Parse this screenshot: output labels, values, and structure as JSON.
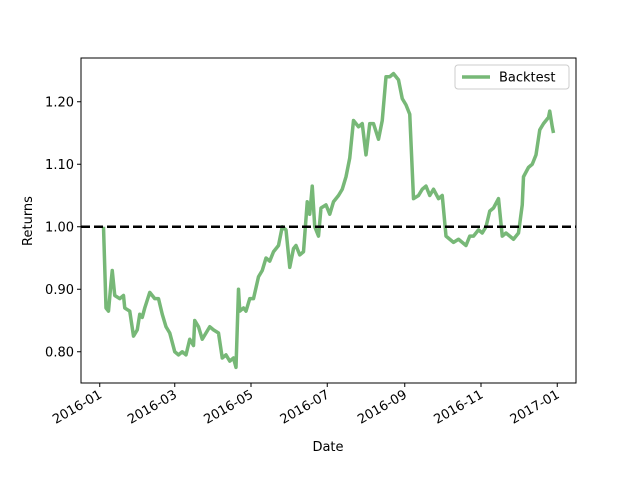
{
  "chart_data": {
    "type": "line",
    "xlabel": "Date",
    "ylabel": "Returns",
    "x": [
      "2016-01-04",
      "2016-01-06",
      "2016-01-08",
      "2016-01-10",
      "2016-01-11",
      "2016-01-13",
      "2016-01-17",
      "2016-01-20",
      "2016-01-21",
      "2016-01-25",
      "2016-01-28",
      "2016-01-31",
      "2016-02-02",
      "2016-02-04",
      "2016-02-06",
      "2016-02-10",
      "2016-02-14",
      "2016-02-17",
      "2016-02-20",
      "2016-02-23",
      "2016-02-26",
      "2016-03-01",
      "2016-03-04",
      "2016-03-07",
      "2016-03-10",
      "2016-03-13",
      "2016-03-16",
      "2016-03-17",
      "2016-03-20",
      "2016-03-23",
      "2016-03-26",
      "2016-03-29",
      "2016-04-01",
      "2016-04-05",
      "2016-04-08",
      "2016-04-11",
      "2016-04-14",
      "2016-04-17",
      "2016-04-19",
      "2016-04-21",
      "2016-04-22",
      "2016-04-25",
      "2016-04-27",
      "2016-04-30",
      "2016-05-03",
      "2016-05-07",
      "2016-05-10",
      "2016-05-13",
      "2016-05-16",
      "2016-05-19",
      "2016-05-23",
      "2016-05-26",
      "2016-05-29",
      "2016-06-01",
      "2016-06-04",
      "2016-06-06",
      "2016-06-09",
      "2016-06-12",
      "2016-06-15",
      "2016-06-17",
      "2016-06-19",
      "2016-06-21",
      "2016-06-24",
      "2016-06-26",
      "2016-06-30",
      "2016-07-03",
      "2016-07-06",
      "2016-07-10",
      "2016-07-13",
      "2016-07-16",
      "2016-07-19",
      "2016-07-22",
      "2016-07-26",
      "2016-07-29",
      "2016-08-01",
      "2016-08-04",
      "2016-08-07",
      "2016-08-11",
      "2016-08-14",
      "2016-08-17",
      "2016-08-20",
      "2016-08-23",
      "2016-08-27",
      "2016-08-30",
      "2016-09-02",
      "2016-09-05",
      "2016-09-08",
      "2016-09-12",
      "2016-09-15",
      "2016-09-18",
      "2016-09-21",
      "2016-09-24",
      "2016-09-28",
      "2016-10-01",
      "2016-10-04",
      "2016-10-07",
      "2016-10-10",
      "2016-10-14",
      "2016-10-17",
      "2016-10-20",
      "2016-10-23",
      "2016-10-26",
      "2016-10-30",
      "2016-11-02",
      "2016-11-05",
      "2016-11-08",
      "2016-11-11",
      "2016-11-15",
      "2016-11-18",
      "2016-11-21",
      "2016-11-24",
      "2016-11-27",
      "2016-12-01",
      "2016-12-04",
      "2016-12-05",
      "2016-12-09",
      "2016-12-12",
      "2016-12-15",
      "2016-12-18",
      "2016-12-21",
      "2016-12-25",
      "2016-12-26",
      "2016-12-28",
      "2016-12-29"
    ],
    "series": [
      {
        "name": "Backtest",
        "color": "#77b877",
        "values": [
          1.0,
          0.87,
          0.865,
          0.91,
          0.93,
          0.89,
          0.885,
          0.89,
          0.87,
          0.865,
          0.825,
          0.835,
          0.86,
          0.855,
          0.87,
          0.895,
          0.885,
          0.885,
          0.86,
          0.84,
          0.83,
          0.8,
          0.795,
          0.8,
          0.795,
          0.82,
          0.81,
          0.85,
          0.84,
          0.82,
          0.83,
          0.84,
          0.835,
          0.83,
          0.79,
          0.795,
          0.785,
          0.79,
          0.775,
          0.9,
          0.865,
          0.87,
          0.865,
          0.885,
          0.885,
          0.92,
          0.93,
          0.95,
          0.945,
          0.96,
          0.97,
          1.0,
          0.995,
          0.935,
          0.965,
          0.97,
          0.955,
          0.96,
          1.04,
          1.02,
          1.065,
          1.0,
          0.985,
          1.03,
          1.035,
          1.02,
          1.04,
          1.05,
          1.06,
          1.08,
          1.11,
          1.17,
          1.16,
          1.165,
          1.115,
          1.165,
          1.165,
          1.14,
          1.17,
          1.24,
          1.24,
          1.245,
          1.235,
          1.205,
          1.195,
          1.18,
          1.045,
          1.05,
          1.06,
          1.065,
          1.05,
          1.06,
          1.045,
          1.05,
          0.985,
          0.98,
          0.975,
          0.98,
          0.975,
          0.97,
          0.985,
          0.985,
          0.995,
          0.99,
          1.0,
          1.025,
          1.03,
          1.045,
          0.985,
          0.99,
          0.985,
          0.98,
          0.99,
          1.035,
          1.08,
          1.095,
          1.1,
          1.115,
          1.155,
          1.165,
          1.175,
          1.185,
          1.16,
          1.15
        ]
      }
    ],
    "hline": {
      "value": 1.0,
      "color": "#000000",
      "style": "dashed"
    },
    "xlim": [
      "2015-12-17",
      "2017-01-16"
    ],
    "xticks": [
      "2016-01",
      "2016-03",
      "2016-05",
      "2016-07",
      "2016-09",
      "2016-11",
      "2017-01"
    ],
    "ylim": [
      0.75,
      1.27
    ],
    "yticks": [
      {
        "value": 0.8,
        "label": "0.80"
      },
      {
        "value": 0.9,
        "label": "0.90"
      },
      {
        "value": 1.0,
        "label": "1.00"
      },
      {
        "value": 1.1,
        "label": "1.10"
      },
      {
        "value": 1.2,
        "label": "1.20"
      }
    ],
    "grid": false,
    "legend": "upper right"
  }
}
